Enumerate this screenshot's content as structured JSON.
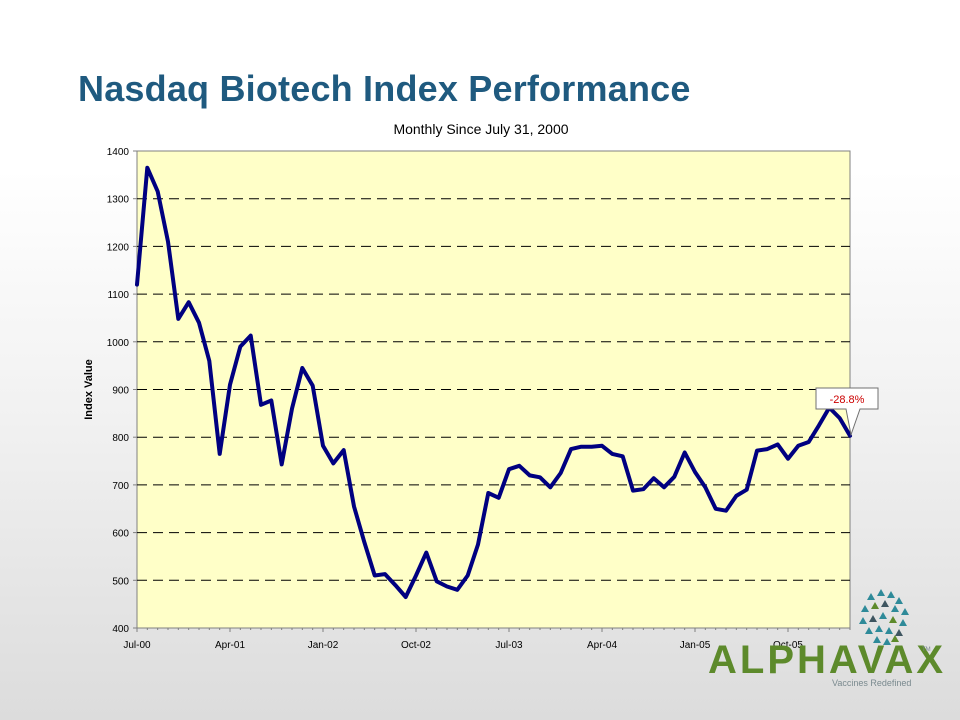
{
  "slide": {
    "title": "Nasdaq Biotech Index Performance"
  },
  "chart_data": {
    "type": "line",
    "title": "Monthly Since July 31, 2000",
    "xlabel": "",
    "ylabel": "Index Value",
    "ylim": [
      400,
      1400
    ],
    "yticks": [
      400,
      500,
      600,
      700,
      800,
      900,
      1000,
      1100,
      1200,
      1300,
      1400
    ],
    "xtick_labels": [
      "Jul-00",
      "Apr-01",
      "Jan-02",
      "Oct-02",
      "Jul-03",
      "Apr-04",
      "Jan-05",
      "Oct-05"
    ],
    "grid": "horizontal dashed",
    "plot_background": "#ffffc8",
    "line_color": "#000080",
    "series": [
      {
        "name": "",
        "values": [
          1120,
          1365,
          1315,
          1210,
          1048,
          1083,
          1040,
          960,
          765,
          910,
          990,
          1013,
          868,
          877,
          743,
          860,
          945,
          908,
          782,
          745,
          773,
          655,
          580,
          510,
          513,
          490,
          465,
          510,
          558,
          498,
          487,
          480,
          510,
          575,
          683,
          673,
          733,
          740,
          720,
          716,
          695,
          725,
          775,
          780,
          780,
          782,
          765,
          760,
          688,
          691,
          714,
          695,
          717,
          768,
          727,
          695,
          650,
          646,
          677,
          690,
          772,
          775,
          785,
          755,
          782,
          790,
          825,
          862,
          840,
          803
        ]
      }
    ],
    "annotation": {
      "text": "-28.8%",
      "color": "#cc0000",
      "points_to": "last point"
    }
  },
  "logo": {
    "wordmark": "ALPHAVAX",
    "tagline": "Vaccines Redefined",
    "tm": "TM",
    "colors": {
      "green": "#5d8a2b",
      "teal": "#2e8a99",
      "dark": "#3e5560"
    }
  }
}
